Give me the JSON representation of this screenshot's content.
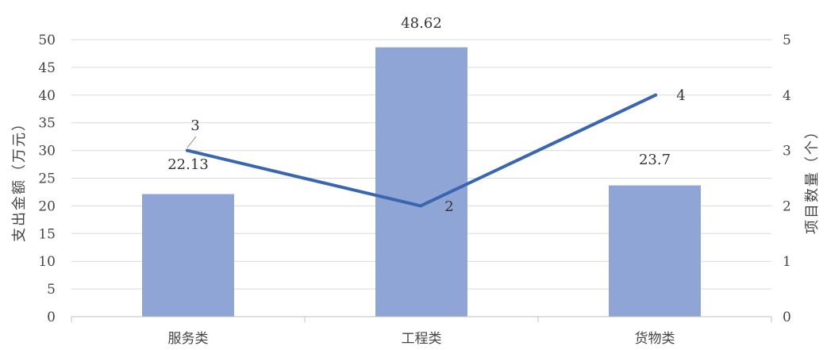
{
  "chart_data": {
    "type": "bar",
    "categories": [
      "服务类",
      "工程类",
      "货物类"
    ],
    "series": [
      {
        "type": "bar",
        "axis": "left",
        "values": [
          22.13,
          48.62,
          23.7
        ],
        "labels": [
          "22.13",
          "48.62",
          "23.7"
        ]
      },
      {
        "type": "line",
        "axis": "right",
        "values": [
          3,
          2,
          4
        ],
        "labels": [
          "3",
          "2",
          "4"
        ]
      }
    ],
    "ylabel": "支出金额（万元）",
    "y2label": "项目数量（个）",
    "ylim": [
      0,
      50
    ],
    "y2lim": [
      0,
      5
    ],
    "yticks": [
      "0",
      "5",
      "10",
      "15",
      "20",
      "25",
      "30",
      "35",
      "40",
      "45",
      "50"
    ],
    "y2ticks": [
      "0",
      "1",
      "2",
      "3",
      "4",
      "5"
    ],
    "grid": true,
    "legend": "none",
    "colors": {
      "bar": "#8FA5D6",
      "line": "#3A66B0",
      "grid": "#D9D9D9",
      "axis": "#BFBFBF",
      "text": "#444444"
    }
  }
}
